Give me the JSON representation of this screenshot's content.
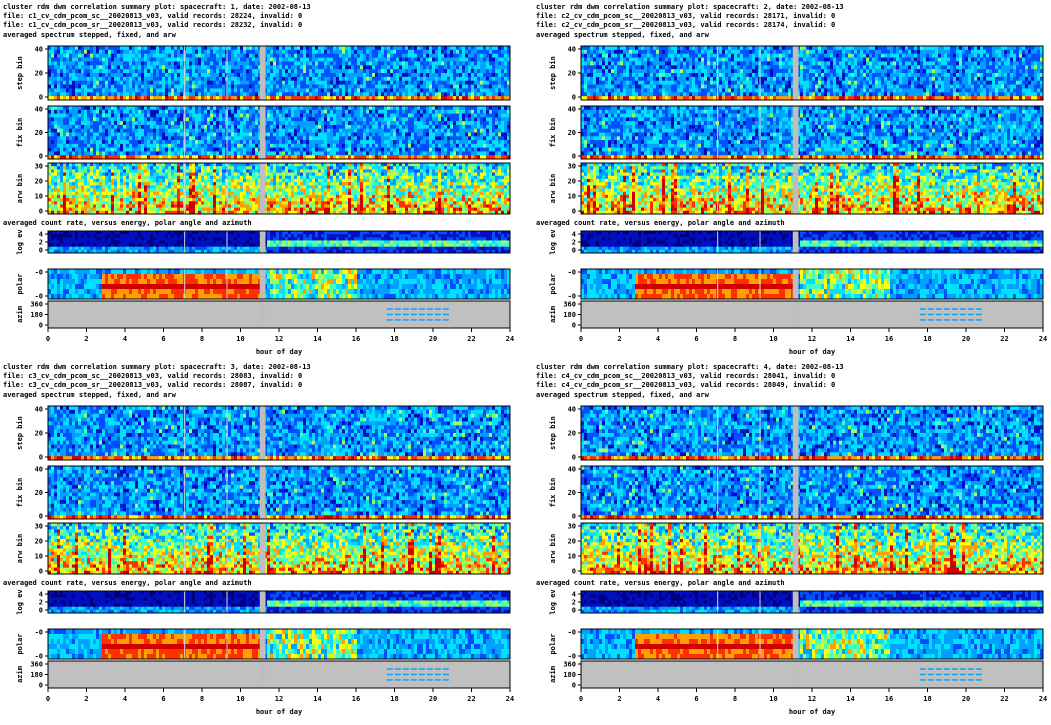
{
  "palette": {
    "background": "#ffffff",
    "data_gap": "#bebebe",
    "panel_background": "#c0c0c0",
    "colormap": [
      "#00007f",
      "#0010c0",
      "#0050ff",
      "#00a0ff",
      "#00e0ff",
      "#40ffc0",
      "#a0ff60",
      "#ffff00",
      "#ffa000",
      "#ff3000",
      "#d00000"
    ]
  },
  "chart_data": [
    {
      "type": "heatmap",
      "title_lines": [
        "cluster rdm dwm correlation summary plot: spacecraft: 1, date: 2002-08-13",
        "file: c1_cv_cdm_pcom_sc__20020813_v03, valid records: 28224, invalid: 0",
        "file: c1_cv_cdm_pcom_sr__20020813_v03, valid records: 28232, invalid: 0"
      ],
      "section_label_1": "averaged spectrum stepped, fixed, and arw",
      "section_label_2": "averaged count rate, versus energy, polar angle and azimuth",
      "panels": [
        {
          "ylabel": "step bin",
          "yticks": [
            "40",
            "20",
            "0"
          ]
        },
        {
          "ylabel": "fix bin",
          "yticks": [
            "40",
            "20",
            "0"
          ]
        },
        {
          "ylabel": "arw bin",
          "yticks": [
            "30",
            "20",
            "10",
            "0"
          ]
        },
        {
          "ylabel": "log ev",
          "yticks": [
            "4",
            "2",
            "0"
          ]
        },
        {
          "ylabel": "polar",
          "yticks": [
            "-0",
            "-0"
          ]
        },
        {
          "ylabel": "azim",
          "yticks": [
            "360",
            "180",
            "0"
          ]
        }
      ],
      "xlabel": "hour of day",
      "xticks": [
        "0",
        "2",
        "4",
        "6",
        "8",
        "10",
        "12",
        "14",
        "16",
        "18",
        "20",
        "22",
        "24"
      ],
      "xlim": [
        0,
        24
      ],
      "data_gap_hours": [
        11.0,
        11.3
      ],
      "energy_high_onset_hour": 11.3,
      "polar_red_band_hours": [
        2.8,
        11.0
      ]
    },
    {
      "type": "heatmap",
      "title_lines": [
        "cluster rdm dwm correlation summary plot: spacecraft: 2, date: 2002-08-13",
        "file: c2_cv_cdm_pcom_sc__20020813_v03, valid records: 28171, invalid: 0",
        "file: c2_cv_cdm_pcom_sr__20020813_v03, valid records: 28174, invalid: 0"
      ],
      "section_label_1": "averaged spectrum stepped, fixed, and arw",
      "section_label_2": "averaged count rate, versus energy, polar angle and azimuth",
      "panels": [
        {
          "ylabel": "step bin",
          "yticks": [
            "40",
            "20",
            "0"
          ]
        },
        {
          "ylabel": "fix bin",
          "yticks": [
            "40",
            "20",
            "0"
          ]
        },
        {
          "ylabel": "arw bin",
          "yticks": [
            "30",
            "20",
            "10",
            "0"
          ]
        },
        {
          "ylabel": "log ev",
          "yticks": [
            "4",
            "2",
            "0"
          ]
        },
        {
          "ylabel": "polar",
          "yticks": [
            "-0",
            "-0"
          ]
        },
        {
          "ylabel": "azim",
          "yticks": [
            "360",
            "180",
            "0"
          ]
        }
      ],
      "xlabel": "hour of day",
      "xticks": [
        "0",
        "2",
        "4",
        "6",
        "8",
        "10",
        "12",
        "14",
        "16",
        "18",
        "20",
        "22",
        "24"
      ],
      "xlim": [
        0,
        24
      ],
      "data_gap_hours": [
        11.0,
        11.3
      ],
      "energy_high_onset_hour": 11.3,
      "polar_red_band_hours": [
        2.8,
        11.0
      ]
    },
    {
      "type": "heatmap",
      "title_lines": [
        "cluster rdm dwm correlation summary plot: spacecraft: 3, date: 2002-08-13",
        "file: c3_cv_cdm_pcom_sc__20020813_v03, valid records: 28083, invalid: 0",
        "file: c3_cv_cdm_pcom_sr__20020813_v03, valid records: 28087, invalid: 0"
      ],
      "section_label_1": "averaged spectrum stepped, fixed, and arw",
      "section_label_2": "averaged count rate, versus energy, polar angle and azimuth",
      "panels": [
        {
          "ylabel": "step bin",
          "yticks": [
            "40",
            "20",
            "0"
          ]
        },
        {
          "ylabel": "fix bin",
          "yticks": [
            "40",
            "20",
            "0"
          ]
        },
        {
          "ylabel": "arw bin",
          "yticks": [
            "30",
            "20",
            "10",
            "0"
          ]
        },
        {
          "ylabel": "log ev",
          "yticks": [
            "4",
            "2",
            "0"
          ]
        },
        {
          "ylabel": "polar",
          "yticks": [
            "-0",
            "-0"
          ]
        },
        {
          "ylabel": "azim",
          "yticks": [
            "360",
            "180",
            "0"
          ]
        }
      ],
      "xlabel": "hour of day",
      "xticks": [
        "0",
        "2",
        "4",
        "6",
        "8",
        "10",
        "12",
        "14",
        "16",
        "18",
        "20",
        "22",
        "24"
      ],
      "xlim": [
        0,
        24
      ],
      "data_gap_hours": [
        11.0,
        11.3
      ],
      "energy_high_onset_hour": 11.3,
      "polar_red_band_hours": [
        2.8,
        11.0
      ]
    },
    {
      "type": "heatmap",
      "title_lines": [
        "cluster rdm dwm correlation summary plot: spacecraft: 4, date: 2002-08-13",
        "file: c4_cv_cdm_pcom_sc__20020813_v03, valid records: 28041, invalid: 0",
        "file: c4_cv_cdm_pcom_sr__20020813_v03, valid records: 28049, invalid: 0"
      ],
      "section_label_1": "averaged spectrum stepped, fixed, and arw",
      "section_label_2": "averaged count rate, versus energy, polar angle and azimuth",
      "panels": [
        {
          "ylabel": "step bin",
          "yticks": [
            "40",
            "20",
            "0"
          ]
        },
        {
          "ylabel": "fix bin",
          "yticks": [
            "40",
            "20",
            "0"
          ]
        },
        {
          "ylabel": "arw bin",
          "yticks": [
            "30",
            "20",
            "10",
            "0"
          ]
        },
        {
          "ylabel": "log ev",
          "yticks": [
            "4",
            "2",
            "0"
          ]
        },
        {
          "ylabel": "polar",
          "yticks": [
            "-0",
            "-0"
          ]
        },
        {
          "ylabel": "azim",
          "yticks": [
            "360",
            "180",
            "0"
          ]
        }
      ],
      "xlabel": "hour of day",
      "xticks": [
        "0",
        "2",
        "4",
        "6",
        "8",
        "10",
        "12",
        "14",
        "16",
        "18",
        "20",
        "22",
        "24"
      ],
      "xlim": [
        0,
        24
      ],
      "data_gap_hours": [
        11.0,
        11.3
      ],
      "energy_high_onset_hour": 11.3,
      "polar_red_band_hours": [
        2.8,
        11.0
      ]
    }
  ]
}
